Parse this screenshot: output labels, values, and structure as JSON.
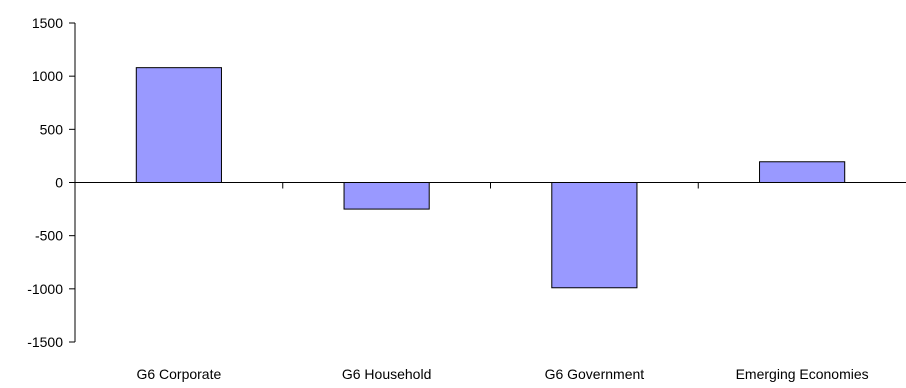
{
  "chart_data": {
    "type": "bar",
    "categories": [
      "G6 Corporate",
      "G6 Household",
      "G6 Government",
      "Emerging Economies"
    ],
    "values": [
      1080,
      -250,
      -990,
      195
    ],
    "ylim": [
      -1500,
      1500
    ],
    "yticks": [
      1500,
      1000,
      500,
      0,
      -500,
      -1000,
      -1500
    ],
    "ytick_labels": [
      "1500",
      "1000",
      "500",
      "0",
      "-500",
      "-1000",
      "-1500"
    ],
    "grid": false,
    "legend": "none",
    "bar_color": "#9999ff",
    "bar_edge_color": "#000000"
  }
}
